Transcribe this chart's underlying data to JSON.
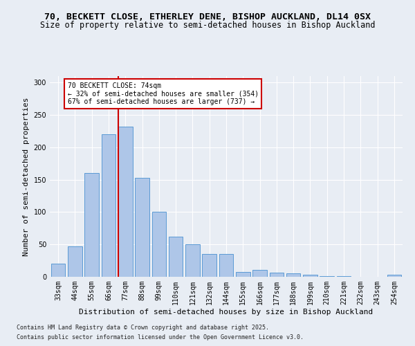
{
  "title_line1": "70, BECKETT CLOSE, ETHERLEY DENE, BISHOP AUCKLAND, DL14 0SX",
  "title_line2": "Size of property relative to semi-detached houses in Bishop Auckland",
  "xlabel": "Distribution of semi-detached houses by size in Bishop Auckland",
  "ylabel": "Number of semi-detached properties",
  "categories": [
    "33sqm",
    "44sqm",
    "55sqm",
    "66sqm",
    "77sqm",
    "88sqm",
    "99sqm",
    "110sqm",
    "121sqm",
    "132sqm",
    "144sqm",
    "155sqm",
    "166sqm",
    "177sqm",
    "188sqm",
    "199sqm",
    "210sqm",
    "221sqm",
    "232sqm",
    "243sqm",
    "254sqm"
  ],
  "values": [
    20,
    47,
    160,
    220,
    232,
    153,
    101,
    62,
    50,
    35,
    35,
    7,
    11,
    6,
    5,
    3,
    1,
    1,
    0,
    0,
    3
  ],
  "bar_color": "#aec6e8",
  "bar_edge_color": "#5b9bd5",
  "vline_pos": 3.58,
  "vline_color": "#cc0000",
  "annotation_text": "70 BECKETT CLOSE: 74sqm\n← 32% of semi-detached houses are smaller (354)\n67% of semi-detached houses are larger (737) →",
  "annotation_box_color": "#ffffff",
  "annotation_box_edge_color": "#cc0000",
  "ylim": [
    0,
    310
  ],
  "yticks": [
    0,
    50,
    100,
    150,
    200,
    250,
    300
  ],
  "bg_color": "#e8edf4",
  "plot_bg_color": "#e8edf4",
  "footer_line1": "Contains HM Land Registry data © Crown copyright and database right 2025.",
  "footer_line2": "Contains public sector information licensed under the Open Government Licence v3.0.",
  "title_fontsize": 9.5,
  "subtitle_fontsize": 8.5,
  "axis_label_fontsize": 8,
  "tick_fontsize": 7,
  "annotation_fontsize": 7,
  "footer_fontsize": 6
}
